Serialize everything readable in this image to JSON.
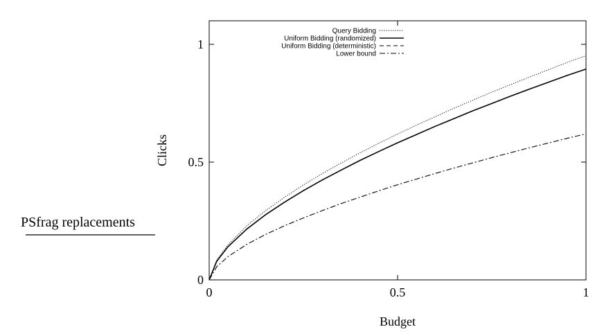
{
  "side_label": "PSfrag replacements",
  "chart_data": {
    "type": "line",
    "xlabel": "Budget",
    "ylabel": "Clicks",
    "xlim": [
      0,
      1
    ],
    "ylim": [
      0,
      1.1
    ],
    "xticks": [
      {
        "value": 0,
        "label": "0"
      },
      {
        "value": 0.5,
        "label": "0.5"
      },
      {
        "value": 1,
        "label": "1"
      }
    ],
    "yticks": [
      {
        "value": 0,
        "label": "0"
      },
      {
        "value": 0.5,
        "label": "0.5"
      },
      {
        "value": 1,
        "label": "1"
      }
    ],
    "grid": false,
    "legend_position": "top-right",
    "series": [
      {
        "name": "Query Bidding",
        "dash": "dotted",
        "x": [
          0,
          0.02,
          0.05,
          0.1,
          0.15,
          0.2,
          0.25,
          0.3,
          0.35,
          0.4,
          0.45,
          0.5,
          0.55,
          0.6,
          0.65,
          0.7,
          0.75,
          0.8,
          0.85,
          0.9,
          0.95,
          1.0
        ],
        "y": [
          0,
          0.084,
          0.149,
          0.23,
          0.294,
          0.351,
          0.403,
          0.451,
          0.496,
          0.539,
          0.58,
          0.619,
          0.657,
          0.693,
          0.729,
          0.763,
          0.797,
          0.829,
          0.861,
          0.892,
          0.923,
          0.952
        ]
      },
      {
        "name": "Uniform Bidding (randomized)",
        "dash": "solid",
        "x": [
          0,
          0.02,
          0.05,
          0.1,
          0.15,
          0.2,
          0.25,
          0.3,
          0.35,
          0.4,
          0.45,
          0.5,
          0.55,
          0.6,
          0.65,
          0.7,
          0.75,
          0.8,
          0.85,
          0.9,
          0.95,
          1.0
        ],
        "y": [
          0,
          0.079,
          0.141,
          0.216,
          0.277,
          0.33,
          0.379,
          0.424,
          0.466,
          0.507,
          0.545,
          0.582,
          0.617,
          0.652,
          0.685,
          0.718,
          0.749,
          0.78,
          0.81,
          0.839,
          0.868,
          0.895
        ]
      },
      {
        "name": "Uniform Bidding (deterministic)",
        "dash": "dashed",
        "x": [
          0,
          0.02,
          0.05,
          0.1,
          0.15,
          0.2,
          0.25,
          0.3,
          0.35,
          0.4,
          0.45,
          0.5,
          0.55,
          0.6,
          0.65,
          0.7,
          0.75,
          0.8,
          0.85,
          0.9,
          0.95,
          1.0
        ],
        "y": [
          0,
          0.079,
          0.141,
          0.216,
          0.277,
          0.33,
          0.379,
          0.424,
          0.466,
          0.507,
          0.545,
          0.582,
          0.617,
          0.652,
          0.685,
          0.718,
          0.749,
          0.78,
          0.81,
          0.839,
          0.868,
          0.895
        ]
      },
      {
        "name": "Lower bound",
        "dash": "dashdot",
        "x": [
          0,
          0.02,
          0.05,
          0.1,
          0.15,
          0.2,
          0.25,
          0.3,
          0.35,
          0.4,
          0.45,
          0.5,
          0.55,
          0.6,
          0.65,
          0.7,
          0.75,
          0.8,
          0.85,
          0.9,
          0.95,
          1.0
        ],
        "y": [
          0,
          0.056,
          0.099,
          0.151,
          0.193,
          0.23,
          0.263,
          0.294,
          0.324,
          0.351,
          0.378,
          0.404,
          0.428,
          0.452,
          0.475,
          0.497,
          0.519,
          0.54,
          0.561,
          0.581,
          0.601,
          0.62
        ]
      }
    ]
  }
}
